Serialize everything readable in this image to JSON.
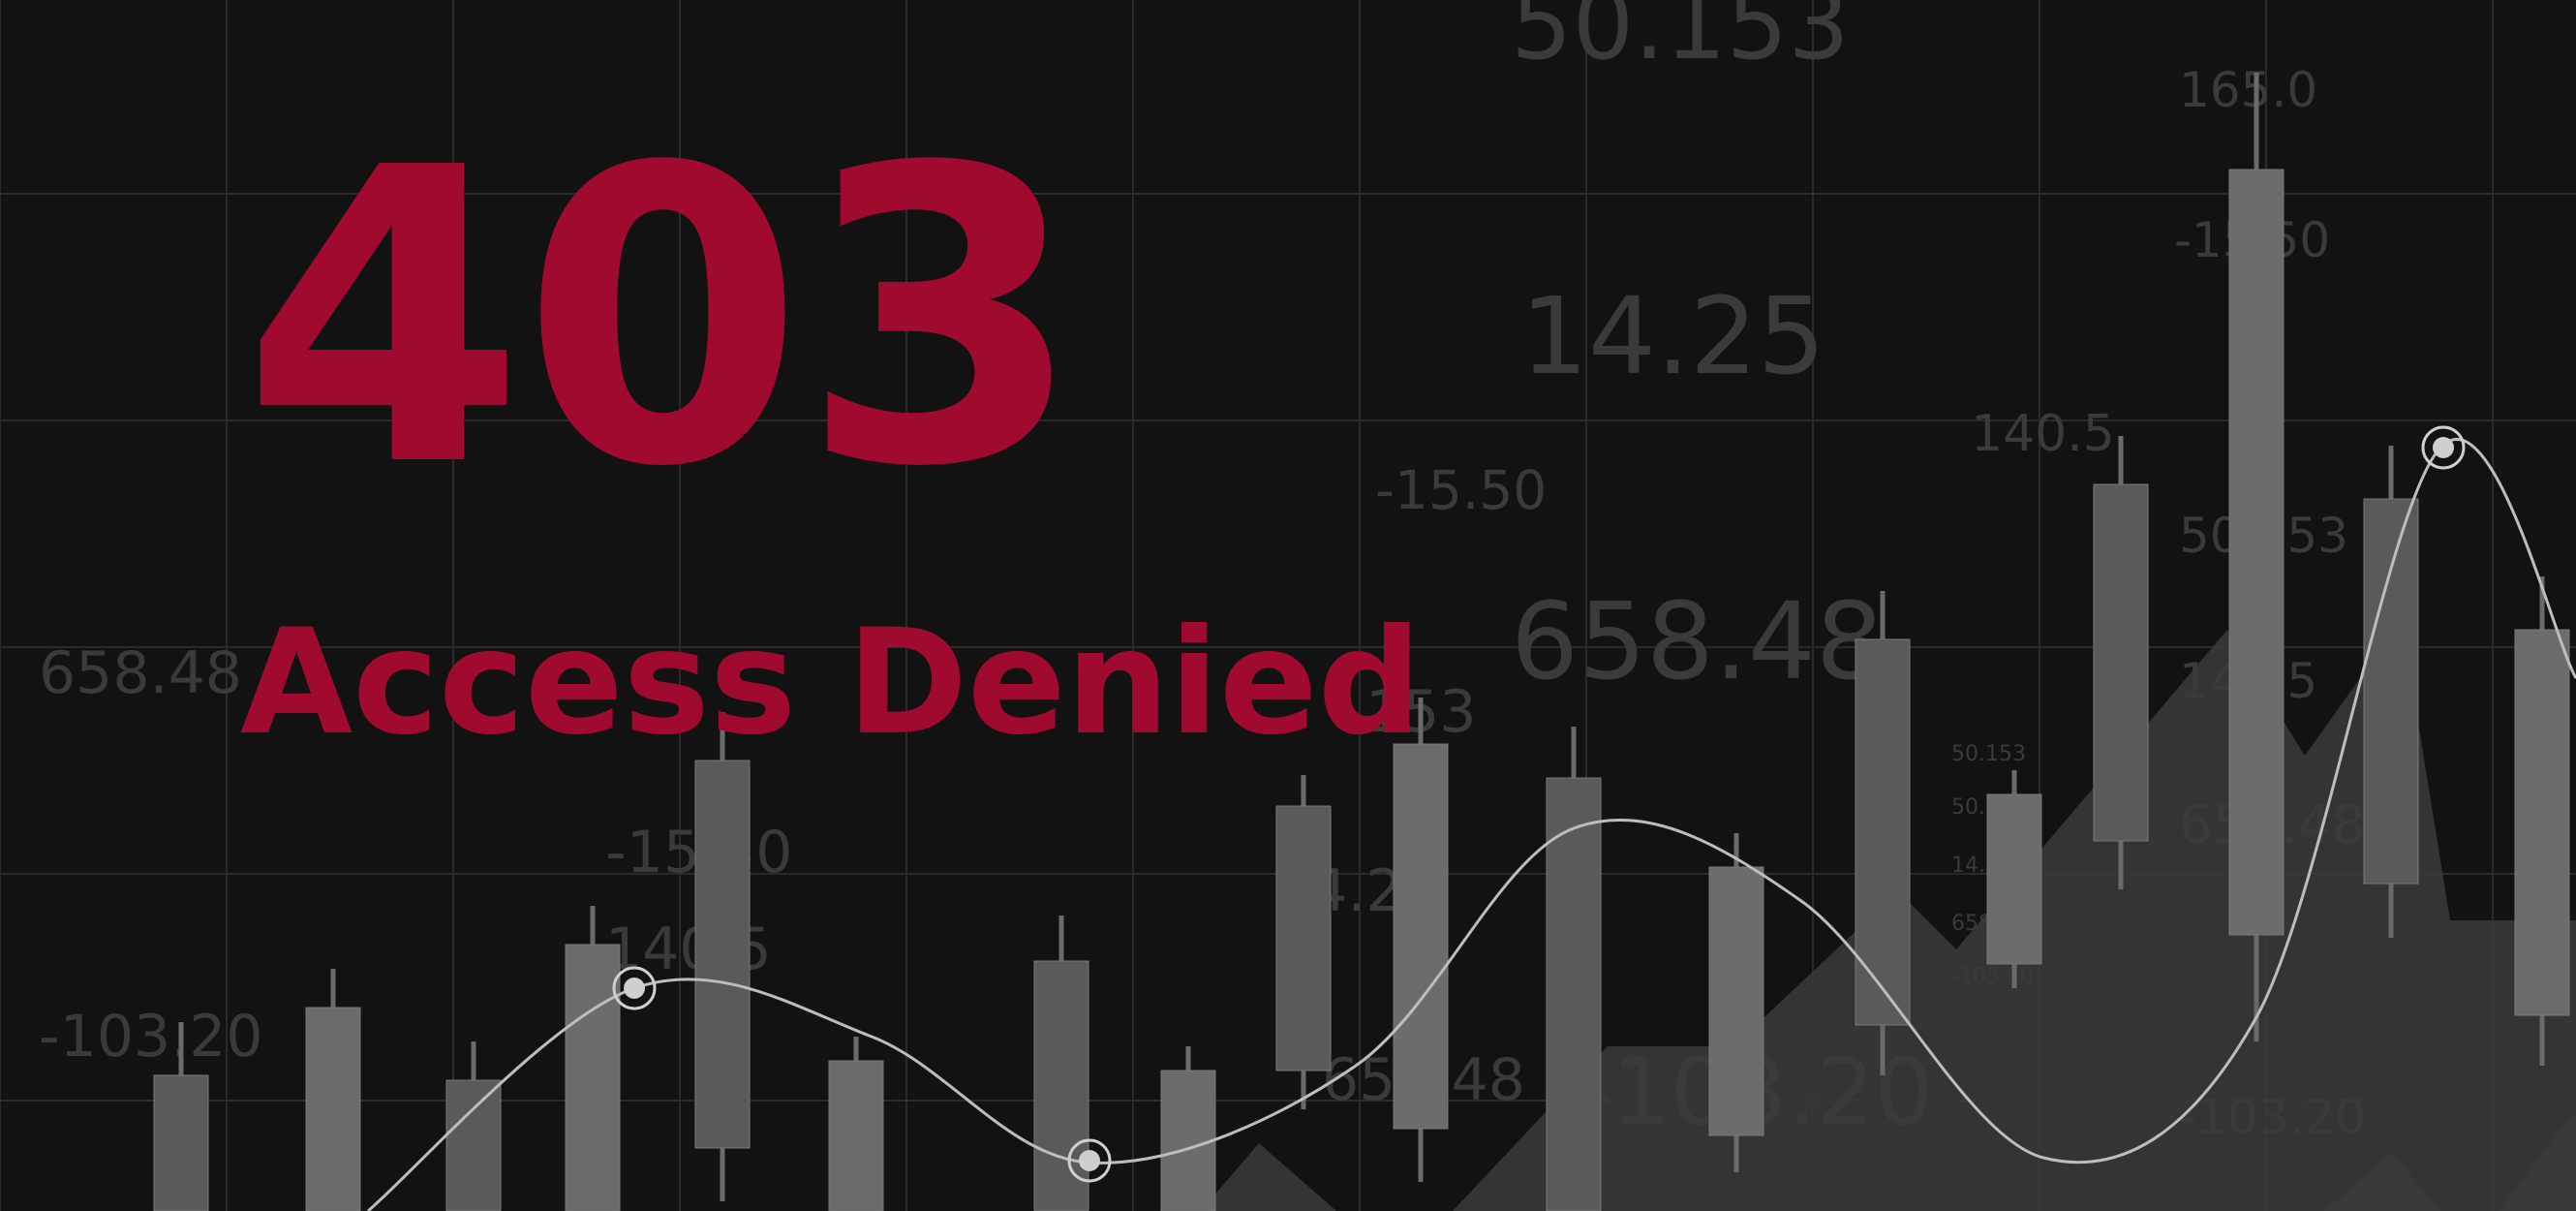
{
  "error": {
    "code": "403",
    "title": "Access Denied"
  },
  "background": {
    "ghost_labels": [
      "50.153",
      "165.0",
      "-15.50",
      "14.25",
      "140.5",
      "-15.50",
      "50.153",
      "658.48",
      "14.25",
      "658.48",
      "658.48",
      "-103.20",
      "-103.20",
      "-103.20",
      "14.25",
      "658.48",
      "140.5",
      "-15.50",
      "50.153",
      "50.153",
      "14.25",
      "658.48",
      "-103.20",
      "153"
    ],
    "colors": {
      "background": "#121212",
      "accent": "#a00a2e",
      "candle": "#5a5a5a",
      "curve": "#bdbdbd"
    }
  }
}
